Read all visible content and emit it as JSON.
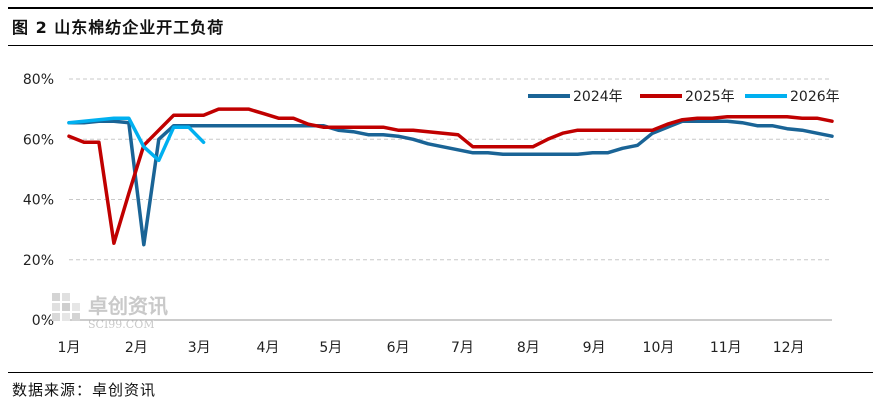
{
  "figure": {
    "title": "图 2  山东棉纺企业开工负荷",
    "source": "数据来源：卓创资讯"
  },
  "watermark": {
    "brand": "卓创资讯",
    "site": "SCI99.COM"
  },
  "chart_data": {
    "type": "line",
    "title": "山东棉纺企业开工负荷",
    "xlabel": "",
    "ylabel": "",
    "x_domain": [
      0,
      51
    ],
    "ylim": [
      0,
      80
    ],
    "y_ticks": [
      0,
      20,
      40,
      60,
      80
    ],
    "y_tick_labels": [
      "0%",
      "20%",
      "40%",
      "60%",
      "80%"
    ],
    "x_ticks": [
      {
        "pos": 0,
        "label": "1月"
      },
      {
        "pos": 4.5,
        "label": "2月"
      },
      {
        "pos": 8.7,
        "label": "3月"
      },
      {
        "pos": 13.3,
        "label": "4月"
      },
      {
        "pos": 17.5,
        "label": "5月"
      },
      {
        "pos": 22,
        "label": "6月"
      },
      {
        "pos": 26.3,
        "label": "7月"
      },
      {
        "pos": 30.7,
        "label": "8月"
      },
      {
        "pos": 35.1,
        "label": "9月"
      },
      {
        "pos": 39.4,
        "label": "10月"
      },
      {
        "pos": 43.9,
        "label": "11月"
      },
      {
        "pos": 48.1,
        "label": "12月"
      }
    ],
    "grid": "horizontal-dashed",
    "legend": "top-right",
    "series": [
      {
        "name": "2024年",
        "color": "#1a6496",
        "points": [
          [
            0,
            65.5
          ],
          [
            1,
            65.5
          ],
          [
            2,
            66
          ],
          [
            3,
            66
          ],
          [
            4,
            65.5
          ],
          [
            5,
            25
          ],
          [
            6,
            60
          ],
          [
            7,
            64.5
          ],
          [
            8,
            64.5
          ],
          [
            9,
            64.5
          ],
          [
            10,
            64.5
          ],
          [
            11,
            64.5
          ],
          [
            12,
            64.5
          ],
          [
            13,
            64.5
          ],
          [
            14,
            64.5
          ],
          [
            15,
            64.5
          ],
          [
            16,
            64.5
          ],
          [
            17,
            64.5
          ],
          [
            18,
            63
          ],
          [
            19,
            62.5
          ],
          [
            20,
            61.5
          ],
          [
            21,
            61.5
          ],
          [
            22,
            61
          ],
          [
            23,
            60
          ],
          [
            24,
            58.5
          ],
          [
            25,
            57.5
          ],
          [
            26,
            56.5
          ],
          [
            27,
            55.5
          ],
          [
            28,
            55.5
          ],
          [
            29,
            55
          ],
          [
            30,
            55
          ],
          [
            31,
            55
          ],
          [
            32,
            55
          ],
          [
            33,
            55
          ],
          [
            34,
            55
          ],
          [
            35,
            55.5
          ],
          [
            36,
            55.5
          ],
          [
            37,
            57
          ],
          [
            38,
            58
          ],
          [
            39,
            62
          ],
          [
            40,
            64
          ],
          [
            41,
            66
          ],
          [
            42,
            66
          ],
          [
            43,
            66
          ],
          [
            44,
            66
          ],
          [
            45,
            65.5
          ],
          [
            46,
            64.5
          ],
          [
            47,
            64.5
          ],
          [
            48,
            63.5
          ],
          [
            49,
            63
          ],
          [
            50,
            62
          ],
          [
            51,
            61
          ]
        ]
      },
      {
        "name": "2025年",
        "color": "#c00000",
        "points": [
          [
            0,
            61
          ],
          [
            1,
            59
          ],
          [
            2,
            59
          ],
          [
            3,
            25.5
          ],
          [
            4,
            42
          ],
          [
            5,
            58
          ],
          [
            6,
            63
          ],
          [
            7,
            68
          ],
          [
            8,
            68
          ],
          [
            9,
            68
          ],
          [
            10,
            70
          ],
          [
            11,
            70
          ],
          [
            12,
            70
          ],
          [
            13,
            68.5
          ],
          [
            14,
            67
          ],
          [
            15,
            67
          ],
          [
            16,
            65
          ],
          [
            17,
            64
          ],
          [
            18,
            64
          ],
          [
            19,
            64
          ],
          [
            20,
            64
          ],
          [
            21,
            64
          ],
          [
            22,
            63
          ],
          [
            23,
            63
          ],
          [
            24,
            62.5
          ],
          [
            25,
            62
          ],
          [
            26,
            61.5
          ],
          [
            27,
            57.5
          ],
          [
            28,
            57.5
          ],
          [
            29,
            57.5
          ],
          [
            30,
            57.5
          ],
          [
            31,
            57.5
          ],
          [
            32,
            60
          ],
          [
            33,
            62
          ],
          [
            34,
            63
          ],
          [
            35,
            63
          ],
          [
            36,
            63
          ],
          [
            37,
            63
          ],
          [
            38,
            63
          ],
          [
            39,
            63
          ],
          [
            40,
            65
          ],
          [
            41,
            66.5
          ],
          [
            42,
            67
          ],
          [
            43,
            67
          ],
          [
            44,
            67.5
          ],
          [
            45,
            67.5
          ],
          [
            46,
            67.5
          ],
          [
            47,
            67.5
          ],
          [
            48,
            67.5
          ],
          [
            49,
            67
          ],
          [
            50,
            67
          ],
          [
            51,
            66
          ]
        ]
      },
      {
        "name": "2026年",
        "color": "#00b0f0",
        "points": [
          [
            0,
            65.5
          ],
          [
            1,
            66
          ],
          [
            2,
            66.5
          ],
          [
            3,
            67
          ],
          [
            4,
            67
          ],
          [
            5,
            57.5
          ],
          [
            6,
            53
          ],
          [
            7,
            64
          ],
          [
            8,
            64
          ],
          [
            9,
            59
          ]
        ]
      }
    ]
  }
}
